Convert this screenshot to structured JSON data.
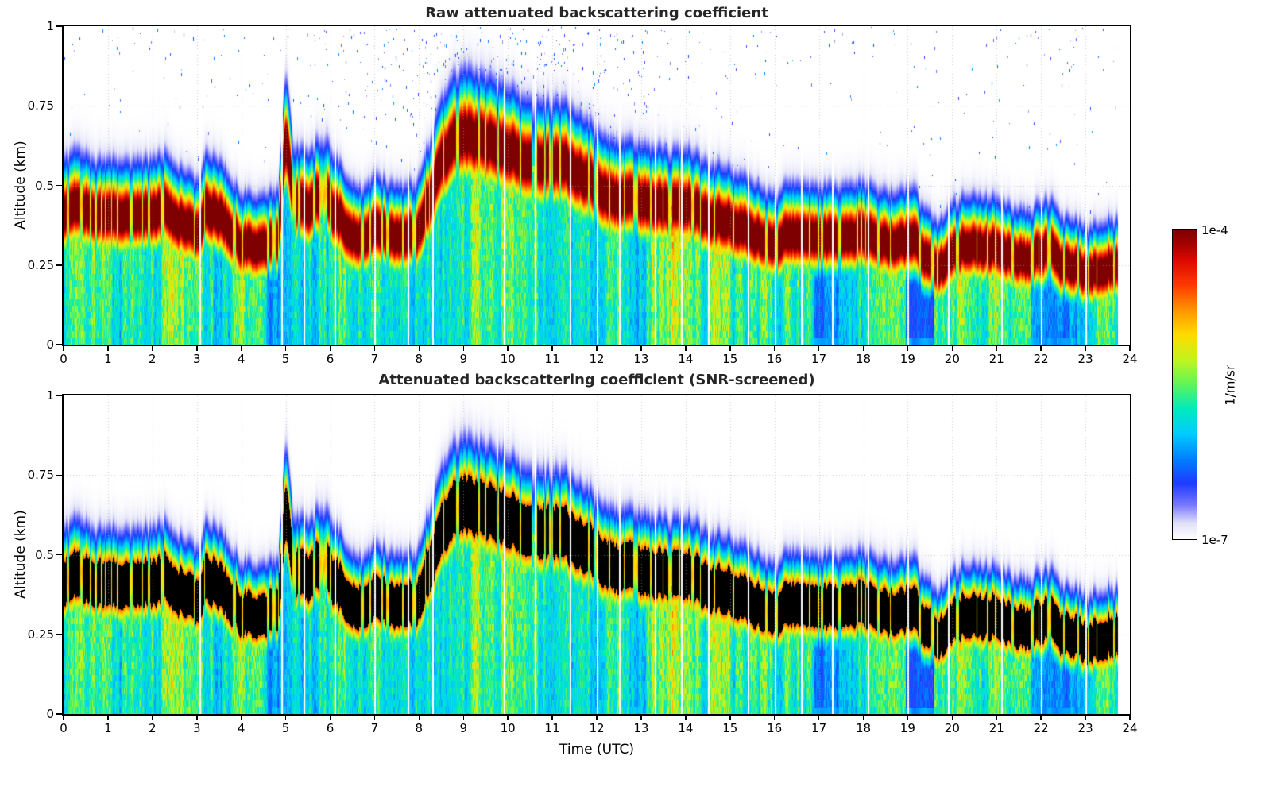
{
  "figure": {
    "background": "#ffffff"
  },
  "colorbar": {
    "label": "1/m/sr",
    "top_label": "1e-4",
    "bottom_label": "1e-7"
  },
  "chart_data": [
    {
      "type": "heatmap",
      "title": "Raw attenuated backscattering coefficient",
      "xlabel": "",
      "ylabel": "Altitude (km)",
      "xlim": [
        0,
        24
      ],
      "ylim": [
        0,
        1
      ],
      "x_ticks": [
        0,
        1,
        2,
        3,
        4,
        5,
        6,
        7,
        8,
        9,
        10,
        11,
        12,
        13,
        14,
        15,
        16,
        17,
        18,
        19,
        20,
        21,
        22,
        23,
        24
      ],
      "y_ticks": [
        0,
        0.25,
        0.5,
        0.75,
        1
      ],
      "grid": true,
      "colormap": "jet",
      "units": "1/m/sr",
      "value_min": "1e-7",
      "value_max": "1e-4",
      "saturated_color": "dark-red",
      "noise_speckles_above_layer": true,
      "data_end_utc": 23.72,
      "data_gap_times_utc": [
        3.05,
        4.9,
        5.4,
        6.1,
        7.0,
        7.75,
        8.3,
        9.9,
        10.6,
        11.4,
        12.0,
        12.5,
        13.3,
        13.9,
        14.5,
        15.4,
        16.0,
        16.6,
        17.3,
        18.1,
        19.0,
        19.9,
        21.1,
        22.0,
        23.0
      ],
      "low_backscatter_notch_utc": [
        19.0,
        19.6
      ],
      "layer_top": {
        "time_utc": [
          0,
          0.3,
          0.7,
          1,
          1.5,
          2,
          2.3,
          2.6,
          3,
          3.2,
          3.5,
          3.8,
          4,
          4.4,
          4.8,
          5,
          5.2,
          5.5,
          5.7,
          5.9,
          6.1,
          6.4,
          6.7,
          7,
          7.3,
          7.6,
          7.9,
          8.2,
          8.5,
          8.8,
          9.1,
          9.4,
          9.7,
          10,
          10.4,
          10.8,
          11.2,
          11.5,
          11.8,
          12,
          12.4,
          12.8,
          13.2,
          13.6,
          14,
          14.4,
          14.8,
          15.2,
          15.6,
          16,
          16.4,
          16.8,
          17.2,
          17.6,
          18,
          18.4,
          18.8,
          19.1,
          19.4,
          19.7,
          20,
          20.4,
          20.8,
          21.2,
          21.6,
          22,
          22.2,
          22.5,
          23,
          23.4,
          23.7,
          24
        ],
        "height_km": [
          0.53,
          0.55,
          0.52,
          0.52,
          0.51,
          0.53,
          0.54,
          0.49,
          0.46,
          0.53,
          0.52,
          0.45,
          0.42,
          0.41,
          0.43,
          0.76,
          0.56,
          0.54,
          0.58,
          0.6,
          0.52,
          0.46,
          0.44,
          0.47,
          0.45,
          0.43,
          0.46,
          0.55,
          0.7,
          0.78,
          0.8,
          0.79,
          0.76,
          0.74,
          0.71,
          0.7,
          0.7,
          0.68,
          0.65,
          0.62,
          0.58,
          0.57,
          0.56,
          0.56,
          0.56,
          0.52,
          0.5,
          0.47,
          0.44,
          0.43,
          0.45,
          0.45,
          0.45,
          0.44,
          0.45,
          0.43,
          0.42,
          0.43,
          0.37,
          0.35,
          0.4,
          0.42,
          0.41,
          0.38,
          0.36,
          0.39,
          0.41,
          0.34,
          0.32,
          0.33,
          0.34,
          0.34
        ]
      }
    },
    {
      "type": "heatmap",
      "title": "Attenuated backscattering coefficient (SNR-screened)",
      "xlabel": "Time (UTC)",
      "ylabel": "Altitude (km)",
      "xlim": [
        0,
        24
      ],
      "ylim": [
        0,
        1
      ],
      "x_ticks": [
        0,
        1,
        2,
        3,
        4,
        5,
        6,
        7,
        8,
        9,
        10,
        11,
        12,
        13,
        14,
        15,
        16,
        17,
        18,
        19,
        20,
        21,
        22,
        23,
        24
      ],
      "y_ticks": [
        0,
        0.25,
        0.5,
        0.75,
        1
      ],
      "grid": true,
      "colormap": "jet",
      "units": "1/m/sr",
      "value_min": "1e-7",
      "value_max": "1e-4",
      "saturated_color": "black",
      "noise_speckles_above_layer": false,
      "data_end_utc": 23.72,
      "layer_top": "same-as-raw-panel"
    }
  ]
}
